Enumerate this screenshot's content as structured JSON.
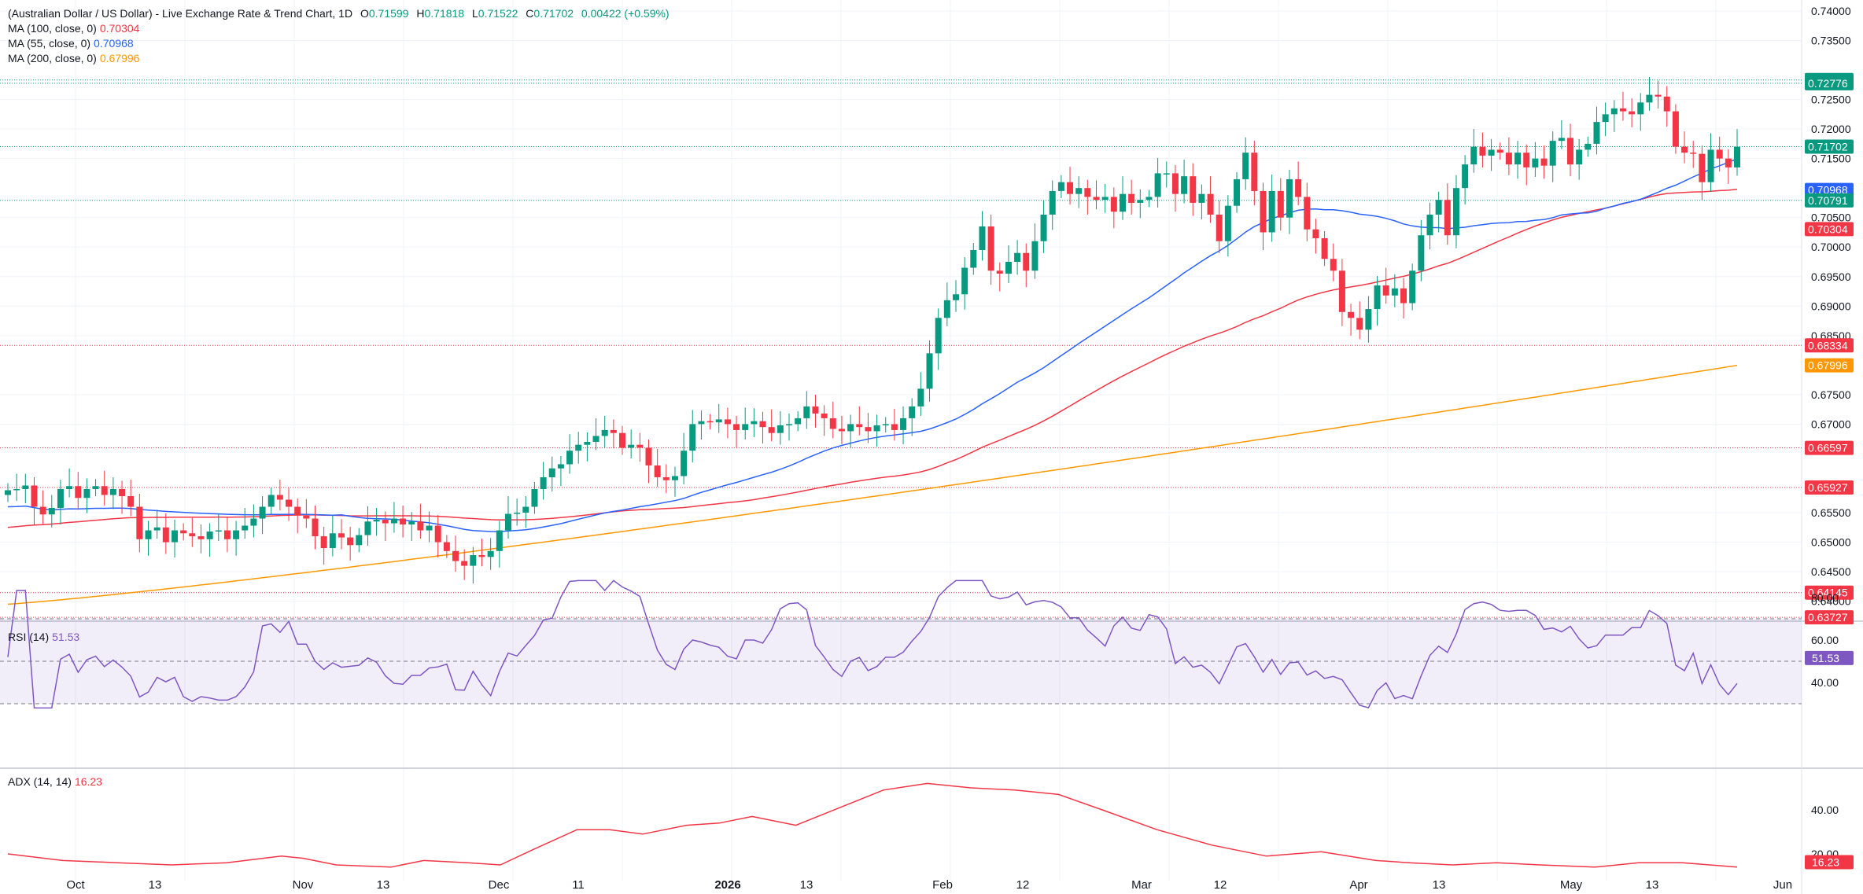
{
  "header": {
    "title": "(Australian Dollar / US Dollar) - Live Exchange Rate & Trend Chart, 1D",
    "open_label": "O",
    "open": "0.71599",
    "high_label": "H",
    "high": "0.71818",
    "low_label": "L",
    "low": "0.71522",
    "close_label": "C",
    "close": "0.71702",
    "change": "0.00422 (+0.59%)"
  },
  "legends": {
    "ma100_label": "MA (100, close, 0)",
    "ma100_value": "0.70304",
    "ma55_label": "MA (55, close, 0)",
    "ma55_value": "0.70968",
    "ma200_label": "MA (200, close, 0)",
    "ma200_value": "0.67996",
    "rsi_label": "RSI (14)",
    "rsi_value": "51.53",
    "adx_label": "ADX (14, 14)",
    "adx_value": "16.23"
  },
  "colors": {
    "up": "#089981",
    "down": "#f23645",
    "ma55": "#2962ff",
    "ma100": "#f23645",
    "ma200": "#ff9800",
    "rsi": "#7e57c2",
    "adx": "#f23645",
    "grid": "#f0f3fa",
    "text": "#131722"
  },
  "chart_data": {
    "type": "candlestick",
    "y_ticks": [
      "0.74000",
      "0.73500",
      "0.72500",
      "0.72000",
      "0.71500",
      "0.70500",
      "0.70000",
      "0.69500",
      "0.69000",
      "0.68500",
      "0.67500",
      "0.67000",
      "0.65500",
      "0.65000",
      "0.64500",
      "0.64000"
    ],
    "x_ticks": [
      "Oct",
      "13",
      "Nov",
      "13",
      "Dec",
      "11",
      "2026",
      "13",
      "Feb",
      "12",
      "Mar",
      "12",
      "Apr",
      "13",
      "May",
      "13",
      "Jun"
    ],
    "price_tags": [
      {
        "label": "0.72831",
        "value": 0.72831,
        "color": "#089981",
        "line": true
      },
      {
        "label": "0.72776",
        "value": 0.72776,
        "color": "#089981",
        "line": true
      },
      {
        "label": "0.71702",
        "value": 0.71702,
        "color": "#089981",
        "line": true
      },
      {
        "label": "0.70968",
        "value": 0.70968,
        "color": "#2962ff",
        "line": false
      },
      {
        "label": "0.70791",
        "value": 0.70791,
        "color": "#089981",
        "line": true
      },
      {
        "label": "0.70304",
        "value": 0.70304,
        "color": "#f23645",
        "line": false
      },
      {
        "label": "0.68334",
        "value": 0.68334,
        "color": "#f23645",
        "line": true
      },
      {
        "label": "0.67996",
        "value": 0.67996,
        "color": "#ff9800",
        "line": false
      },
      {
        "label": "0.66597",
        "value": 0.66597,
        "color": "#f23645",
        "line": true
      },
      {
        "label": "0.65927",
        "value": 0.65927,
        "color": "#f23645",
        "line": true
      },
      {
        "label": "0.64145",
        "value": 0.64145,
        "color": "#f23645",
        "line": true
      },
      {
        "label": "0.63727",
        "value": 0.63727,
        "color": "#f23645",
        "line": true
      }
    ],
    "closes": [
      0.6588,
      0.659,
      0.6596,
      0.656,
      0.6547,
      0.6558,
      0.659,
      0.6595,
      0.6575,
      0.659,
      0.6595,
      0.658,
      0.659,
      0.6578,
      0.656,
      0.6505,
      0.652,
      0.6525,
      0.65,
      0.652,
      0.6515,
      0.651,
      0.6505,
      0.6518,
      0.652,
      0.6505,
      0.652,
      0.6528,
      0.654,
      0.656,
      0.658,
      0.6572,
      0.656,
      0.6545,
      0.654,
      0.651,
      0.649,
      0.6515,
      0.6508,
      0.6495,
      0.6512,
      0.6535,
      0.6538,
      0.6532,
      0.654,
      0.653,
      0.6535,
      0.652,
      0.6528,
      0.65,
      0.6485,
      0.6468,
      0.646,
      0.6478,
      0.6475,
      0.6485,
      0.652,
      0.6548,
      0.655,
      0.656,
      0.659,
      0.661,
      0.6625,
      0.6632,
      0.6655,
      0.6665,
      0.667,
      0.668,
      0.669,
      0.6685,
      0.666,
      0.6665,
      0.666,
      0.663,
      0.661,
      0.6605,
      0.6612,
      0.6655,
      0.67,
      0.6705,
      0.6703,
      0.6708,
      0.67,
      0.669,
      0.67,
      0.6705,
      0.6695,
      0.6685,
      0.6698,
      0.67,
      0.671,
      0.673,
      0.6718,
      0.671,
      0.6692,
      0.6688,
      0.67,
      0.6695,
      0.6688,
      0.6698,
      0.67,
      0.669,
      0.671,
      0.673,
      0.676,
      0.682,
      0.688,
      0.691,
      0.692,
      0.6965,
      0.6995,
      0.7035,
      0.696,
      0.6955,
      0.6975,
      0.699,
      0.696,
      0.701,
      0.7055,
      0.7095,
      0.711,
      0.709,
      0.71,
      0.7085,
      0.708,
      0.7085,
      0.706,
      0.709,
      0.7075,
      0.708,
      0.7085,
      0.7125,
      0.7125,
      0.709,
      0.712,
      0.7075,
      0.709,
      0.7055,
      0.701,
      0.707,
      0.7115,
      0.716,
      0.7095,
      0.7025,
      0.7095,
      0.705,
      0.7115,
      0.7085,
      0.703,
      0.7015,
      0.698,
      0.696,
      0.689,
      0.688,
      0.686,
      0.6895,
      0.6935,
      0.6918,
      0.693,
      0.6905,
      0.696,
      0.702,
      0.7055,
      0.708,
      0.702,
      0.71,
      0.714,
      0.717,
      0.7155,
      0.7165,
      0.716,
      0.714,
      0.716,
      0.7135,
      0.715,
      0.7138,
      0.718,
      0.7185,
      0.714,
      0.7165,
      0.7175,
      0.7212,
      0.7225,
      0.7235,
      0.723,
      0.7225,
      0.7245,
      0.7258,
      0.7255,
      0.723,
      0.717,
      0.716,
      0.7158,
      0.711,
      0.7165,
      0.715,
      0.7135,
      0.717
    ]
  }
}
